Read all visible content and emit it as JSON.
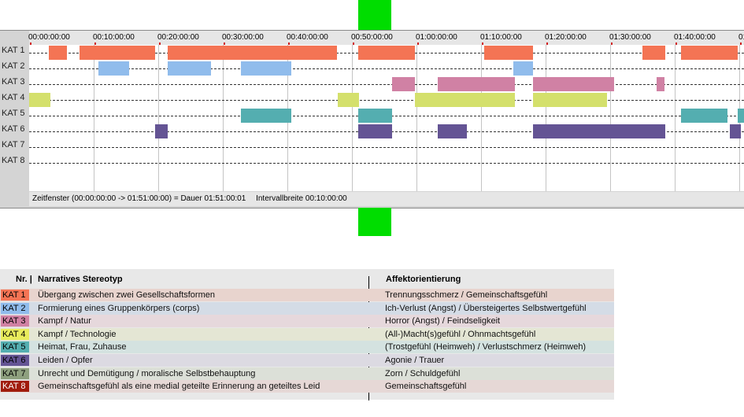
{
  "timeline": {
    "time_ticks": [
      "00:00:00:00",
      "00:10:00:00",
      "00:20:00:00",
      "00:30:00:00",
      "00:40:00:00",
      "00:50:00:00",
      "01:00:00:00",
      "01:10:00:00",
      "01:20:00:00",
      "01:30:00:00",
      "01:40:00:00",
      "01"
    ],
    "categories": [
      {
        "id": "KAT 1",
        "label": "KAT 1",
        "color": "#f47454"
      },
      {
        "id": "KAT 2",
        "label": "KAT 2",
        "color": "#90bcec"
      },
      {
        "id": "KAT 3",
        "label": "KAT 3",
        "color": "#d081a4"
      },
      {
        "id": "KAT 4",
        "label": "KAT 4",
        "color": "#d4e06c"
      },
      {
        "id": "KAT 5",
        "label": "KAT 5",
        "color": "#54aeb0"
      },
      {
        "id": "KAT 6",
        "label": "KAT 6",
        "color": "#645494"
      },
      {
        "id": "KAT 7",
        "label": "KAT 7",
        "color": "#8ea07e"
      },
      {
        "id": "KAT 8",
        "label": "KAT 8",
        "color": "#9c1c0c"
      }
    ],
    "segments": [
      {
        "cat": 0,
        "start": "00:03:00",
        "end": "00:05:45"
      },
      {
        "cat": 0,
        "start": "00:07:45",
        "end": "00:19:30"
      },
      {
        "cat": 0,
        "start": "00:21:30",
        "end": "00:47:45"
      },
      {
        "cat": 0,
        "start": "00:51:00",
        "end": "00:59:45"
      },
      {
        "cat": 0,
        "start": "01:10:30",
        "end": "01:18:00"
      },
      {
        "cat": 0,
        "start": "01:35:00",
        "end": "01:38:30"
      },
      {
        "cat": 0,
        "start": "01:41:00",
        "end": "01:49:45"
      },
      {
        "cat": 1,
        "start": "00:10:45",
        "end": "00:15:30"
      },
      {
        "cat": 1,
        "start": "00:21:30",
        "end": "00:28:15"
      },
      {
        "cat": 1,
        "start": "00:32:45",
        "end": "00:40:30"
      },
      {
        "cat": 1,
        "start": "01:15:00",
        "end": "01:18:00"
      },
      {
        "cat": 2,
        "start": "00:56:15",
        "end": "00:59:45"
      },
      {
        "cat": 2,
        "start": "01:03:15",
        "end": "01:15:15"
      },
      {
        "cat": 2,
        "start": "01:18:00",
        "end": "01:30:30"
      },
      {
        "cat": 2,
        "start": "01:37:15",
        "end": "01:38:30"
      },
      {
        "cat": 3,
        "start": "00:00:00",
        "end": "00:03:15"
      },
      {
        "cat": 3,
        "start": "00:47:45",
        "end": "00:51:00"
      },
      {
        "cat": 3,
        "start": "00:59:45",
        "end": "01:15:15"
      },
      {
        "cat": 3,
        "start": "01:18:00",
        "end": "01:29:30"
      },
      {
        "cat": 4,
        "start": "00:32:45",
        "end": "00:40:30"
      },
      {
        "cat": 4,
        "start": "00:51:00",
        "end": "00:56:15"
      },
      {
        "cat": 4,
        "start": "01:41:00",
        "end": "01:48:15"
      },
      {
        "cat": 4,
        "start": "01:49:45",
        "end": "01:51:00"
      },
      {
        "cat": 5,
        "start": "00:19:30",
        "end": "00:21:30"
      },
      {
        "cat": 5,
        "start": "00:51:00",
        "end": "00:56:15"
      },
      {
        "cat": 5,
        "start": "01:03:15",
        "end": "01:07:45"
      },
      {
        "cat": 5,
        "start": "01:18:00",
        "end": "01:38:30"
      },
      {
        "cat": 5,
        "start": "01:48:30",
        "end": "01:50:15"
      }
    ],
    "status": {
      "window": "Zeitfenster (00:00:00:00 -> 01:51:00:00) = Dauer 01:51:00:01",
      "interval": "Intervallbreite 00:10:00:00"
    }
  },
  "legend": {
    "headers": {
      "nr": "Nr. |",
      "stereotype": "Narratives Stereotyp",
      "affect": "Affektorientierung"
    },
    "rows": [
      {
        "code": "KAT 1",
        "stereotype": "Übergang zwischen zwei Gesellschaftsformen",
        "affect": "Trennungsschmerz / Gemeinschaftsgefühl",
        "color": "#f47454",
        "bg": "#e8d4ce"
      },
      {
        "code": "KAT 2",
        "stereotype": "Formierung eines Gruppenkörpers (corps)",
        "affect": "Ich-Verlust (Angst) / Übersteigertes Selbstwertgefühl",
        "color": "#90bcec",
        "bg": "#d4dce6"
      },
      {
        "code": "KAT 3",
        "stereotype": "Kampf / Natur",
        "affect": "Horror (Angst) / Feindseligkeit",
        "color": "#d081a4",
        "bg": "#e6d8dc"
      },
      {
        "code": "KAT 4",
        "stereotype": "Kampf / Technologie",
        "affect": "(All-)Macht(s)gefühl / Ohnmachtsgefühl",
        "color": "#e8ec5c",
        "bg": "#e4e6d4"
      },
      {
        "code": "KAT 5",
        "stereotype": "Heimat, Frau, Zuhause",
        "affect": "(Trostgefühl (Heimweh) / Verlustschmerz (Heimweh)",
        "color": "#54aeb0",
        "bg": "#d4e2e0"
      },
      {
        "code": "KAT 6",
        "stereotype": "Leiden / Opfer",
        "affect": "Agonie / Trauer",
        "color": "#645494",
        "bg": "#dcdae2"
      },
      {
        "code": "KAT 7",
        "stereotype": "Unrecht und Demütigung / moralische Selbstbehauptung",
        "affect": "Zorn / Schuldgefühl",
        "color": "#8ea07e",
        "bg": "#dce0d8"
      },
      {
        "code": "KAT 8",
        "stereotype": "Gemeinschaftsgefühl als eine medial geteilte Erinnerung an geteiltes Leid",
        "affect": "Gemeinschaftsgefühl",
        "color": "#a01c0c",
        "bg": "#e6d8d6"
      }
    ]
  }
}
